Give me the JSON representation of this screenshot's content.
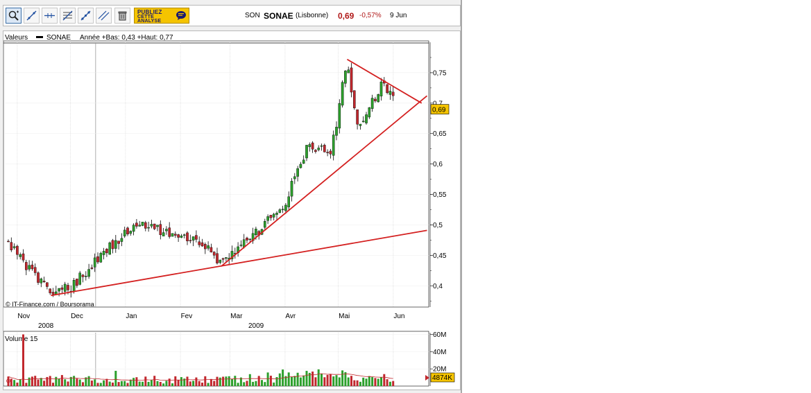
{
  "toolbar": {
    "tools": [
      {
        "name": "zoom-tool-icon"
      },
      {
        "name": "trendline-tool-icon"
      },
      {
        "name": "horizontal-line-tool-icon"
      },
      {
        "name": "fibonacci-tool-icon"
      },
      {
        "name": "channel-tool-icon"
      },
      {
        "name": "parallel-lines-tool-icon"
      },
      {
        "name": "trash-icon"
      }
    ],
    "ad": {
      "line1": "PUBLIEZ",
      "line2": "CETTE",
      "line3": "ANALYSE"
    }
  },
  "quote": {
    "code": "SON",
    "name": "SONAE",
    "market": "(Lisbonne)",
    "price": "0,69",
    "change": "-0,57%",
    "date": "9 Jun"
  },
  "colors": {
    "up": "#2ca02c",
    "down": "#c1272d",
    "trendline": "#d42020",
    "price_box": "#f5c400",
    "volume_box": "#f5c400"
  },
  "chart_data": [
    {
      "type": "candlestick",
      "legend_label": "Valeurs",
      "series_name": "SONAE",
      "range_text": "Année +Bas: 0,43 +Haut: 0,77",
      "copyright": "© IT-Finance.com / Boursorama",
      "last_price_label": "0,69",
      "y_ticks": [
        "0,75",
        "0,7",
        "0,65",
        "0,6",
        "0,55",
        "0,5",
        "0,45",
        "0,4"
      ],
      "y_tick_values": [
        0.75,
        0.7,
        0.65,
        0.6,
        0.55,
        0.5,
        0.45,
        0.4
      ],
      "ylim": [
        0.365,
        0.8
      ],
      "x_months": [
        "Nov",
        "Dec",
        "Jan",
        "Fev",
        "Mar",
        "Avr",
        "Mai",
        "Jun"
      ],
      "x_years": [
        "2008",
        "2009"
      ],
      "grid": true,
      "key_closes": [
        {
          "date": "2008-10-27",
          "close": 0.47
        },
        {
          "date": "2008-11-20",
          "close": 0.385
        },
        {
          "date": "2008-12-02",
          "close": 0.4
        },
        {
          "date": "2008-12-15",
          "close": 0.44
        },
        {
          "date": "2009-01-05",
          "close": 0.5
        },
        {
          "date": "2009-01-20",
          "close": 0.49
        },
        {
          "date": "2009-02-10",
          "close": 0.48
        },
        {
          "date": "2009-02-24",
          "close": 0.435
        },
        {
          "date": "2009-03-10",
          "close": 0.47
        },
        {
          "date": "2009-03-31",
          "close": 0.53
        },
        {
          "date": "2009-04-14",
          "close": 0.63
        },
        {
          "date": "2009-04-27",
          "close": 0.62
        },
        {
          "date": "2009-05-06",
          "close": 0.77
        },
        {
          "date": "2009-05-12",
          "close": 0.66
        },
        {
          "date": "2009-05-26",
          "close": 0.73
        },
        {
          "date": "2009-06-09",
          "close": 0.69
        }
      ],
      "trendlines": [
        {
          "from": {
            "date": "2008-11-20",
            "value": 0.384
          },
          "to": {
            "date": "2009-06-20",
            "value": 0.491
          }
        },
        {
          "from": {
            "date": "2009-02-24",
            "value": 0.432
          },
          "to": {
            "date": "2009-06-20",
            "value": 0.712
          }
        },
        {
          "from": {
            "date": "2009-05-06",
            "value": 0.772
          },
          "to": {
            "date": "2009-06-17",
            "value": 0.7
          }
        }
      ]
    },
    {
      "type": "bar",
      "legend_label": "Volume 15",
      "y_ticks": [
        "60M",
        "40M",
        "20M"
      ],
      "y_tick_values": [
        60,
        40,
        20
      ],
      "ylim": [
        0,
        62
      ],
      "unit": "M",
      "last_volume_label": "4874K",
      "peak": {
        "date": "2008-11-04",
        "value": 60
      },
      "moving_average_label": "15"
    }
  ]
}
